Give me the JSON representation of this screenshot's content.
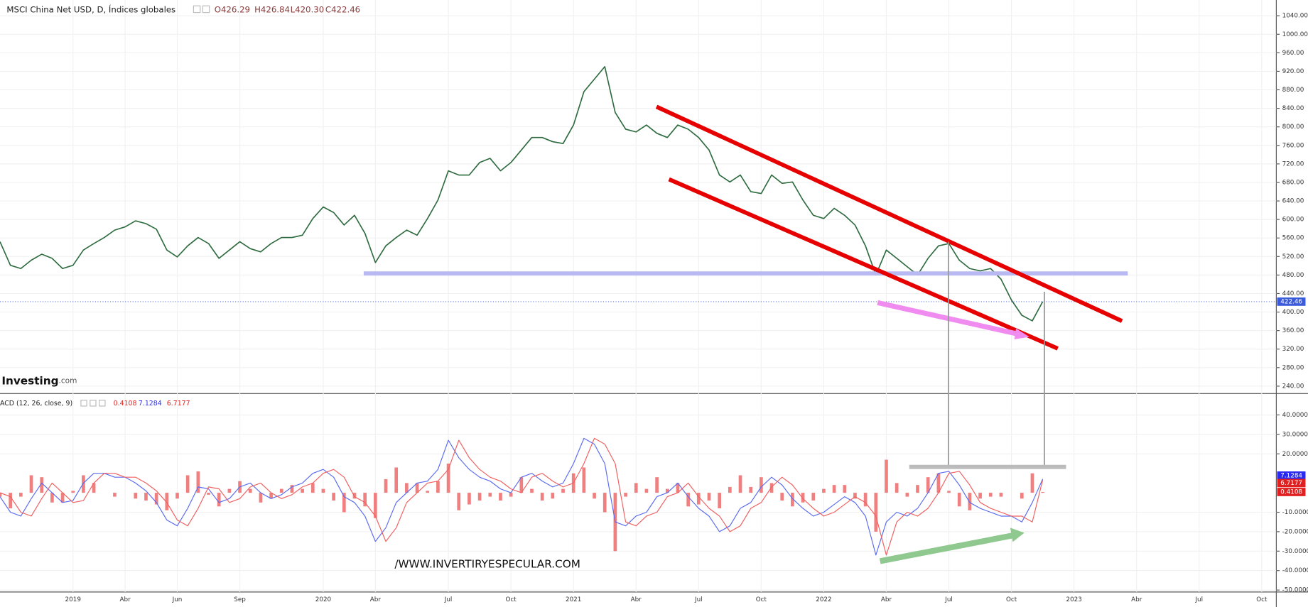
{
  "header": {
    "title": "MSCI China Net USD, D, Índices globales",
    "open": "O426.29",
    "high": "H426.84",
    "low": "L420.30",
    "close": "C422.46",
    "logo": "Investing",
    "logo_domain": ".com",
    "indicator": "ACD (12, 26, close, 9)",
    "watermark": "/WWW.INVERTIRYESPECULAR.COM"
  },
  "chart_data": [
    {
      "type": "line",
      "color": "#2e6b3f",
      "categories": [
        null,
        null,
        null,
        null,
        null,
        null,
        null,
        "2019",
        null,
        null,
        null,
        null,
        "Abr",
        null,
        null,
        null,
        null,
        "Jun",
        null,
        null,
        null,
        null,
        null,
        "Sep",
        null,
        null,
        null,
        null,
        null,
        null,
        null,
        "2020",
        null,
        null,
        null,
        null,
        "Abr",
        null,
        null,
        null,
        null,
        null,
        null,
        "Jul",
        null,
        null,
        null,
        null,
        null,
        "Oct",
        null,
        null,
        null,
        null,
        null,
        "2021",
        null,
        null,
        null,
        null,
        null,
        "Abr",
        null,
        null,
        null,
        null,
        null,
        "Jul",
        null,
        null,
        null,
        null,
        null,
        "Oct",
        null,
        null,
        null,
        null,
        null,
        "2022",
        null,
        null,
        null,
        null,
        null,
        "Abr",
        null,
        null,
        null,
        null,
        null,
        "Jul",
        null,
        null,
        null,
        null,
        null,
        "Oct",
        null,
        null,
        null,
        null,
        null,
        "2023",
        null,
        null,
        null,
        null,
        null,
        "Abr",
        null,
        null,
        null,
        null,
        null,
        "Jul",
        null,
        null,
        null,
        null,
        null,
        "Oct"
      ],
      "values": [
        552,
        501,
        494,
        512,
        525,
        516,
        494,
        501,
        534,
        548,
        561,
        577,
        584,
        597,
        591,
        579,
        534,
        519,
        543,
        561,
        548,
        516,
        534,
        552,
        537,
        530,
        548,
        561,
        561,
        566,
        602,
        627,
        615,
        588,
        609,
        570,
        507,
        543,
        561,
        577,
        566,
        602,
        642,
        705,
        696,
        696,
        723,
        732,
        705,
        723,
        750,
        777,
        777,
        768,
        764,
        804,
        876,
        903,
        930,
        831,
        795,
        789,
        804,
        786,
        777,
        804,
        795,
        777,
        750,
        696,
        681,
        696,
        660,
        656,
        696,
        678,
        681,
        642,
        609,
        602,
        624,
        609,
        588,
        543,
        480,
        534,
        516,
        498,
        480,
        516,
        543,
        548,
        512,
        494,
        489,
        494,
        471,
        426,
        393,
        381,
        422.46,
        null,
        null,
        null,
        null,
        null,
        null,
        null,
        null,
        null,
        null,
        null,
        null,
        null,
        null,
        null,
        null,
        null,
        null,
        null,
        null,
        null
      ],
      "ylim": [
        224,
        1074
      ],
      "yticks": [
        {
          "value": 240,
          "label": "240.00"
        },
        {
          "value": 280,
          "label": "280.00"
        },
        {
          "value": 320,
          "label": "320.00"
        },
        {
          "value": 360,
          "label": "360.00"
        },
        {
          "value": 400,
          "label": "400.00"
        },
        {
          "value": 440,
          "label": "440.00"
        },
        {
          "value": 480,
          "label": "480.00"
        },
        {
          "value": 520,
          "label": "520.00"
        },
        {
          "value": 560,
          "label": "560.00"
        },
        {
          "value": 600,
          "label": "600.00"
        },
        {
          "value": 640,
          "label": "640.00"
        },
        {
          "value": 680,
          "label": "680.00"
        },
        {
          "value": 720,
          "label": "720.00"
        },
        {
          "value": 760,
          "label": "760.00"
        },
        {
          "value": 800,
          "label": "800.00"
        },
        {
          "value": 840,
          "label": "840.00"
        },
        {
          "value": 880,
          "label": "880.00"
        },
        {
          "value": 920,
          "label": "920.00"
        },
        {
          "value": 960,
          "label": "960.00"
        },
        {
          "value": 1000,
          "label": "1000.00"
        },
        {
          "value": 1040,
          "label": "1040.00"
        }
      ],
      "grid": true,
      "last_color": "#3b5bdb"
    },
    {
      "type": "line",
      "series": [
        {
          "color": "#5b6cf0",
          "values": [
            -2,
            -10,
            -12,
            -3,
            5,
            0,
            -5,
            -4,
            5,
            10,
            10,
            8,
            8,
            5,
            1,
            -5,
            -14,
            -17,
            -8,
            3,
            2,
            -5,
            -3,
            3,
            5,
            0,
            -3,
            -1,
            3,
            5,
            10,
            12,
            8,
            -2,
            -5,
            -12,
            -25,
            -18,
            -5,
            0,
            5,
            6,
            12,
            27,
            18,
            12,
            8,
            6,
            2,
            0,
            8,
            10,
            6,
            3,
            5,
            15,
            28,
            25,
            15,
            -15,
            -17,
            -12,
            -10,
            -2,
            0,
            5,
            -2,
            -8,
            -12,
            -20,
            -17,
            -8,
            -5,
            3,
            8,
            4,
            -3,
            -8,
            -12,
            -10,
            -6,
            -2,
            -5,
            -12,
            -32,
            -15,
            -10,
            -12,
            -8,
            0,
            10,
            11,
            4,
            -5,
            -8,
            -10,
            -12,
            -12,
            -15,
            -5,
            7.1284,
            null,
            null,
            null,
            null,
            null,
            null,
            null,
            null,
            null,
            null,
            null,
            null,
            null,
            null,
            null,
            null,
            null,
            null,
            null,
            null,
            null
          ]
        },
        {
          "color": "#f06060",
          "values": [
            0,
            -2,
            -10,
            -12,
            -3,
            5,
            0,
            -5,
            -4,
            5,
            10,
            10,
            8,
            8,
            5,
            1,
            -5,
            -14,
            -17,
            -8,
            3,
            2,
            -5,
            -3,
            3,
            5,
            0,
            -3,
            -1,
            3,
            5,
            10,
            12,
            8,
            -2,
            -5,
            -12,
            -25,
            -18,
            -5,
            0,
            5,
            6,
            12,
            27,
            18,
            12,
            8,
            6,
            2,
            0,
            8,
            10,
            6,
            3,
            5,
            15,
            28,
            25,
            15,
            -15,
            -17,
            -12,
            -10,
            -2,
            0,
            5,
            -2,
            -8,
            -12,
            -20,
            -17,
            -8,
            -5,
            3,
            8,
            4,
            -3,
            -8,
            -12,
            -10,
            -6,
            -2,
            -5,
            -12,
            -32,
            -15,
            -10,
            -12,
            -8,
            0,
            10,
            11,
            4,
            -5,
            -8,
            -10,
            -12,
            -12,
            -15,
            6.7177,
            null,
            null,
            null,
            null,
            null,
            null,
            null,
            null,
            null,
            null,
            null,
            null,
            null,
            null,
            null,
            null,
            null,
            null,
            null,
            null,
            null
          ]
        },
        {
          "type": "bar",
          "color": "#f08080",
          "values": [
            -2,
            -8,
            -2,
            9,
            8,
            -5,
            -5,
            1,
            9,
            5,
            0,
            -2,
            0,
            -3,
            -4,
            -6,
            -9,
            -3,
            9,
            11,
            -1,
            -7,
            2,
            6,
            2,
            -5,
            -3,
            2,
            4,
            2,
            5,
            2,
            -4,
            -10,
            -3,
            -7,
            -13,
            7,
            13,
            5,
            5,
            1,
            6,
            15,
            -9,
            -6,
            -4,
            -2,
            -4,
            -2,
            8,
            2,
            -4,
            -3,
            2,
            10,
            13,
            -3,
            -10,
            -30,
            -2,
            5,
            2,
            8,
            2,
            5,
            -7,
            -6,
            -4,
            -8,
            3,
            9,
            3,
            8,
            5,
            -4,
            -7,
            -5,
            -4,
            2,
            4,
            4,
            -3,
            -7,
            -20,
            17,
            5,
            -2,
            4,
            8,
            10,
            1,
            -7,
            -9,
            -3,
            -2,
            -2,
            0,
            -3,
            10,
            0.4108,
            null,
            null,
            null,
            null,
            null,
            null,
            null,
            null,
            null,
            null,
            null,
            null,
            null,
            null,
            null,
            null,
            null,
            null,
            null,
            null,
            null
          ]
        }
      ],
      "ylim": [
        -51,
        51
      ],
      "yticks": [
        {
          "value": 40,
          "label": "40.0000"
        },
        {
          "value": 30,
          "label": "30.0000"
        },
        {
          "value": 20,
          "label": "20.0000"
        },
        {
          "value": -10,
          "label": "-10.0000"
        },
        {
          "value": -20,
          "label": "-20.0000"
        },
        {
          "value": -30,
          "label": "-30.0000"
        },
        {
          "value": -40,
          "label": "-40.0000"
        },
        {
          "value": -50,
          "label": "-50.0000"
        }
      ]
    }
  ]
}
